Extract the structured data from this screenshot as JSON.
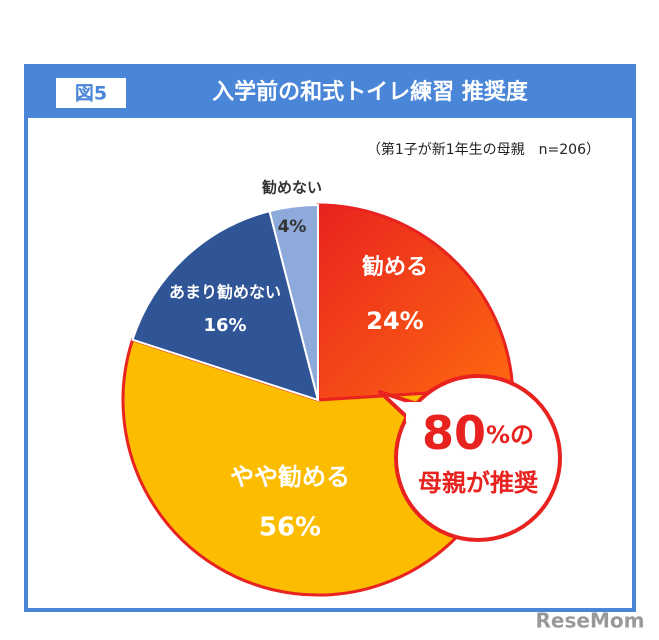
{
  "chart_data": {
    "type": "pie",
    "badge": "図5",
    "title": "入学前の和式トイレ練習 推奨度",
    "subtitle": "（第1子が新1年生の母親　n=206）",
    "categories": [
      "勧める",
      "やや勧める",
      "あまり勧めない",
      "勧めない"
    ],
    "values": [
      24,
      56,
      16,
      4
    ],
    "value_labels": [
      "24%",
      "56%",
      "16%",
      "4%"
    ],
    "colors": [
      "#f0461e",
      "#fcbc00",
      "#2f5596",
      "#8eaadb"
    ],
    "callout": {
      "number": "80",
      "suffix": "%の",
      "text": "母親が推奨"
    },
    "watermark": "ReseMom"
  }
}
